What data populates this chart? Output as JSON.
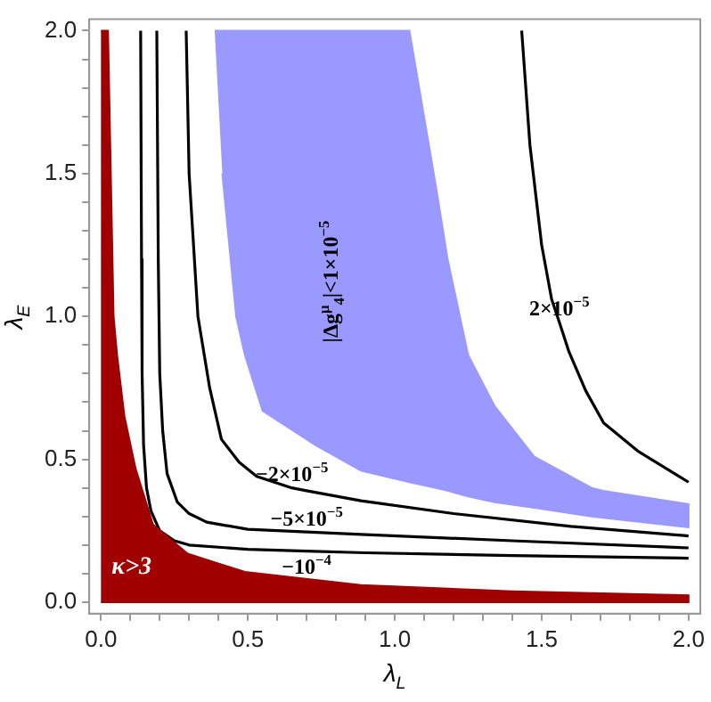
{
  "chart_data": {
    "type": "line",
    "xlabel": "λ$_{L}$",
    "ylabel": "λ$_{E}$",
    "xlim": [
      -0.04,
      2.04
    ],
    "ylim": [
      -0.04,
      2.04
    ],
    "xticks": [
      {
        "value": 0,
        "label": "0.0"
      },
      {
        "value": 0.1,
        "label": null
      },
      {
        "value": 0.2,
        "label": null
      },
      {
        "value": 0.3,
        "label": null
      },
      {
        "value": 0.4,
        "label": null
      },
      {
        "value": 0.5,
        "label": "0.5"
      },
      {
        "value": 0.6,
        "label": null
      },
      {
        "value": 0.7,
        "label": null
      },
      {
        "value": 0.8,
        "label": null
      },
      {
        "value": 0.9,
        "label": null
      },
      {
        "value": 1,
        "label": "1.0"
      },
      {
        "value": 1.1,
        "label": null
      },
      {
        "value": 1.2,
        "label": null
      },
      {
        "value": 1.3,
        "label": null
      },
      {
        "value": 1.4,
        "label": null
      },
      {
        "value": 1.5,
        "label": "1.5"
      },
      {
        "value": 1.6,
        "label": null
      },
      {
        "value": 1.7,
        "label": null
      },
      {
        "value": 1.8,
        "label": null
      },
      {
        "value": 1.9,
        "label": null
      },
      {
        "value": 2,
        "label": "2.0"
      }
    ],
    "yticks": [
      {
        "value": 0,
        "label": "0.0"
      },
      {
        "value": 0.1,
        "label": null
      },
      {
        "value": 0.2,
        "label": null
      },
      {
        "value": 0.3,
        "label": null
      },
      {
        "value": 0.4,
        "label": null
      },
      {
        "value": 0.5,
        "label": "0.5"
      },
      {
        "value": 0.6,
        "label": null
      },
      {
        "value": 0.7,
        "label": null
      },
      {
        "value": 0.8,
        "label": null
      },
      {
        "value": 0.9,
        "label": null
      },
      {
        "value": 1,
        "label": "1.0"
      },
      {
        "value": 1.1,
        "label": null
      },
      {
        "value": 1.2,
        "label": null
      },
      {
        "value": 1.3,
        "label": null
      },
      {
        "value": 1.4,
        "label": null
      },
      {
        "value": 1.5,
        "label": "1.5"
      },
      {
        "value": 1.6,
        "label": null
      },
      {
        "value": 1.7,
        "label": null
      },
      {
        "value": 1.8,
        "label": null
      },
      {
        "value": 1.9,
        "label": null
      },
      {
        "value": 2,
        "label": "2.0"
      }
    ],
    "grid": false,
    "legend": false,
    "marker": "none",
    "line_style": "solid",
    "series": [
      {
        "type": "area",
        "name": "κ>3",
        "color": "#a00000",
        "x": [
          0,
          0.024,
          0.043,
          0.055,
          0.08,
          0.118,
          0.177,
          0.295,
          0.49,
          0.885,
          1.4,
          2.0,
          2.0,
          0
        ],
        "values": [
          2,
          2,
          1.0,
          0.864,
          0.65,
          0.467,
          0.272,
          0.17,
          0.106,
          0.06,
          0.038,
          0.024,
          0,
          0
        ]
      },
      {
        "type": "area",
        "name": "|Δg$^{μ}$$_{4}$|<1×10$^{−5}$",
        "color": "#9999ff",
        "x": [
          0.387,
          0.413,
          0.46,
          0.49,
          0.55,
          0.73,
          0.885,
          1.05,
          1.14,
          1.18,
          1.25,
          1.34,
          1.475,
          1.67,
          1.71,
          2.0,
          2.0,
          1.71,
          1.67,
          1.475,
          1.34,
          1.25,
          1.18,
          1.14,
          1.05,
          0.885,
          0.73,
          0.55,
          0.49,
          0.46,
          0.413
        ],
        "values": [
          2,
          2,
          2,
          2,
          2,
          2,
          2,
          2,
          1.456,
          1.2,
          0.864,
          0.686,
          0.509,
          0.4,
          0.39,
          0.343,
          0.262,
          0.295,
          0.3,
          0.33,
          0.35,
          0.37,
          0.39,
          0.4,
          0.42,
          0.46,
          0.55,
          0.67,
          0.864,
          1.0,
          1.5
        ]
      },
      {
        "color": "#000000",
        "x": [
          0.135,
          0.138,
          0.14,
          0.145,
          0.155,
          0.17,
          0.2,
          0.25,
          0.3,
          0.5,
          0.7,
          0.9,
          1.4,
          2.0
        ],
        "values": [
          2,
          1.2,
          0.8,
          0.55,
          0.4,
          0.32,
          0.25,
          0.215,
          0.2,
          0.185,
          0.179,
          0.173,
          0.163,
          0.154
        ]
      },
      {
        "color": "#000000",
        "x": [
          0.19,
          0.195,
          0.2,
          0.21,
          0.225,
          0.26,
          0.3,
          0.36,
          0.5,
          0.7,
          0.885,
          1.4,
          2.0
        ],
        "values": [
          2,
          1.2,
          0.8,
          0.6,
          0.45,
          0.35,
          0.31,
          0.28,
          0.255,
          0.246,
          0.237,
          0.215,
          0.19
        ]
      },
      {
        "color": "#000000",
        "x": [
          0.29,
          0.3,
          0.33,
          0.37,
          0.41,
          0.47,
          0.53,
          0.65,
          0.7,
          0.885,
          1.2,
          1.6,
          2.0
        ],
        "values": [
          2,
          1.5,
          1.0,
          0.75,
          0.57,
          0.49,
          0.44,
          0.4,
          0.39,
          0.355,
          0.31,
          0.265,
          0.232
        ]
      },
      {
        "color": "#000000",
        "x": [
          1.432,
          1.46,
          1.5,
          1.534,
          1.56,
          1.593,
          1.65,
          1.711,
          1.83,
          2.0
        ],
        "values": [
          2,
          1.6,
          1.25,
          1.06,
          0.98,
          0.876,
          0.74,
          0.627,
          0.527,
          0.42
        ]
      }
    ],
    "annotations": [
      {
        "text": "2×10$^{−5}$",
        "x": 1.56,
        "y": 0.98
      },
      {
        "text": "−2×10$^{−5}$",
        "x": 0.65,
        "y": 0.4
      },
      {
        "text": "−5×10$^{−5}$",
        "x": 0.7,
        "y": 0.246
      },
      {
        "text": "−10$^{−4}$",
        "x": 0.7,
        "y": 0.179
      }
    ]
  }
}
